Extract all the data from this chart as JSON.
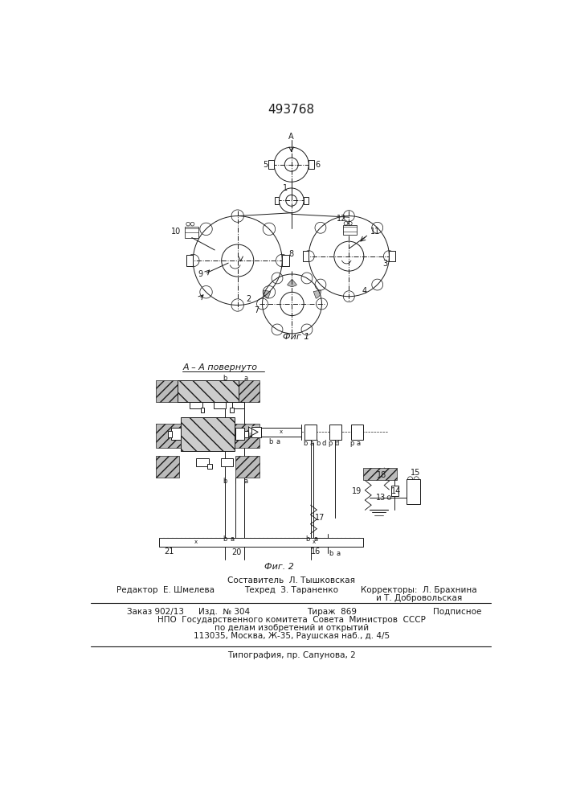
{
  "patent_number": "493768",
  "bg_color": "#ffffff",
  "line_color": "#1a1a1a",
  "fig1_caption": "Фиг 1",
  "fig2_caption": "Фиг. 2",
  "fig2_label": "А – А повернуто"
}
